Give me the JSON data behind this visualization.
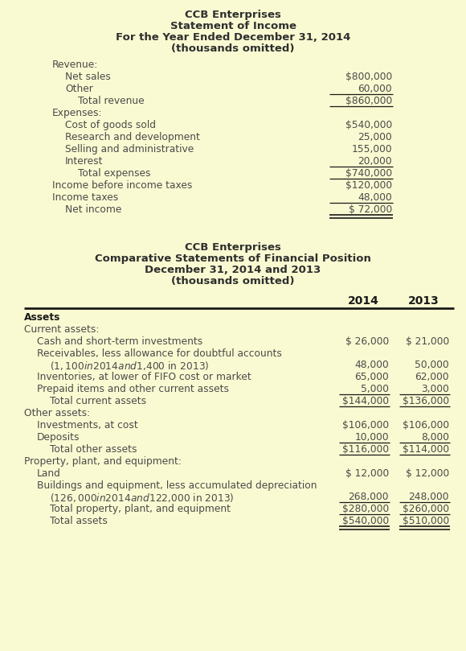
{
  "bg_color": "#FAFAD2",
  "title_color": "#2F2F2F",
  "text_color": "#4a4a4a",
  "bold_color": "#1a1a1a",
  "figsize": [
    5.8,
    8.09
  ],
  "dpi": 100,
  "income_title1": "CCB Enterprises",
  "income_title2": "Statement of Income",
  "income_title3": "For the Year Ended December 31, 2014",
  "income_title4": "(thousands omitted)",
  "income_rows": [
    {
      "label": "Revenue:",
      "indent": 0,
      "value": "",
      "underline": false,
      "double_underline": false
    },
    {
      "label": "Net sales",
      "indent": 1,
      "value": "$800,000",
      "underline": false,
      "double_underline": false
    },
    {
      "label": "Other",
      "indent": 1,
      "value": "60,000",
      "underline": true,
      "double_underline": false
    },
    {
      "label": "Total revenue",
      "indent": 2,
      "value": "$860,000",
      "underline": true,
      "double_underline": false
    },
    {
      "label": "Expenses:",
      "indent": 0,
      "value": "",
      "underline": false,
      "double_underline": false
    },
    {
      "label": "Cost of goods sold",
      "indent": 1,
      "value": "$540,000",
      "underline": false,
      "double_underline": false
    },
    {
      "label": "Research and development",
      "indent": 1,
      "value": "25,000",
      "underline": false,
      "double_underline": false
    },
    {
      "label": "Selling and administrative",
      "indent": 1,
      "value": "155,000",
      "underline": false,
      "double_underline": false
    },
    {
      "label": "Interest",
      "indent": 1,
      "value": "20,000",
      "underline": true,
      "double_underline": false
    },
    {
      "label": "Total expenses",
      "indent": 2,
      "value": "$740,000",
      "underline": true,
      "double_underline": false
    },
    {
      "label": "Income before income taxes",
      "indent": 0,
      "value": "$120,000",
      "underline": false,
      "double_underline": false
    },
    {
      "label": "Income taxes",
      "indent": 0,
      "value": "48,000",
      "underline": true,
      "double_underline": false
    },
    {
      "label": "Net income",
      "indent": 1,
      "value": "$ 72,000",
      "underline": false,
      "double_underline": true
    }
  ],
  "bs_title1": "CCB Enterprises",
  "bs_title2": "Comparative Statements of Financial Position",
  "bs_title3": "December 31, 2014 and 2013",
  "bs_title4": "(thousands omitted)",
  "bs_rows": [
    {
      "label": "Assets",
      "label2": null,
      "indent": 0,
      "val2014": "",
      "val2013": "",
      "bold_label": true,
      "underline2014": false,
      "underline2013": false,
      "double2014": false,
      "double2013": false
    },
    {
      "label": "Current assets:",
      "label2": null,
      "indent": 0,
      "val2014": "",
      "val2013": "",
      "bold_label": false,
      "underline2014": false,
      "underline2013": false,
      "double2014": false,
      "double2013": false
    },
    {
      "label": "Cash and short-term investments",
      "label2": null,
      "indent": 1,
      "val2014": "$ 26,000",
      "val2013": "$ 21,000",
      "bold_label": false,
      "underline2014": false,
      "underline2013": false,
      "double2014": false,
      "double2013": false
    },
    {
      "label": "Receivables, less allowance for doubtful accounts",
      "label2": "($1,100 in 2014 and $1,400 in 2013)",
      "indent": 1,
      "val2014": "48,000",
      "val2013": "50,000",
      "bold_label": false,
      "underline2014": false,
      "underline2013": false,
      "double2014": false,
      "double2013": false
    },
    {
      "label": "Inventories, at lower of FIFO cost or market",
      "label2": null,
      "indent": 1,
      "val2014": "65,000",
      "val2013": "62,000",
      "bold_label": false,
      "underline2014": false,
      "underline2013": false,
      "double2014": false,
      "double2013": false
    },
    {
      "label": "Prepaid items and other current assets",
      "label2": null,
      "indent": 1,
      "val2014": "5,000",
      "val2013": "3,000",
      "bold_label": false,
      "underline2014": true,
      "underline2013": true,
      "double2014": false,
      "double2013": false
    },
    {
      "label": "Total current assets",
      "label2": null,
      "indent": 2,
      "val2014": "$144,000",
      "val2013": "$136,000",
      "bold_label": false,
      "underline2014": true,
      "underline2013": true,
      "double2014": false,
      "double2013": false
    },
    {
      "label": "Other assets:",
      "label2": null,
      "indent": 0,
      "val2014": "",
      "val2013": "",
      "bold_label": false,
      "underline2014": false,
      "underline2013": false,
      "double2014": false,
      "double2013": false
    },
    {
      "label": "Investments, at cost",
      "label2": null,
      "indent": 1,
      "val2014": "$106,000",
      "val2013": "$106,000",
      "bold_label": false,
      "underline2014": false,
      "underline2013": false,
      "double2014": false,
      "double2013": false
    },
    {
      "label": "Deposits",
      "label2": null,
      "indent": 1,
      "val2014": "10,000",
      "val2013": "8,000",
      "bold_label": false,
      "underline2014": true,
      "underline2013": true,
      "double2014": false,
      "double2013": false
    },
    {
      "label": "Total other assets",
      "label2": null,
      "indent": 2,
      "val2014": "$116,000",
      "val2013": "$114,000",
      "bold_label": false,
      "underline2014": true,
      "underline2013": true,
      "double2014": false,
      "double2013": false
    },
    {
      "label": "Property, plant, and equipment:",
      "label2": null,
      "indent": 0,
      "val2014": "",
      "val2013": "",
      "bold_label": false,
      "underline2014": false,
      "underline2013": false,
      "double2014": false,
      "double2013": false
    },
    {
      "label": "Land",
      "label2": null,
      "indent": 1,
      "val2014": "$ 12,000",
      "val2013": "$ 12,000",
      "bold_label": false,
      "underline2014": false,
      "underline2013": false,
      "double2014": false,
      "double2013": false
    },
    {
      "label": "Buildings and equipment, less accumulated depreciation",
      "label2": "($126,000 in 2014 and $122,000 in 2013)",
      "indent": 1,
      "val2014": "268,000",
      "val2013": "248,000",
      "bold_label": false,
      "underline2014": true,
      "underline2013": true,
      "double2014": false,
      "double2013": false
    },
    {
      "label": "Total property, plant, and equipment",
      "label2": null,
      "indent": 2,
      "val2014": "$280,000",
      "val2013": "$260,000",
      "bold_label": false,
      "underline2014": true,
      "underline2013": true,
      "double2014": false,
      "double2013": false
    },
    {
      "label": "Total assets",
      "label2": null,
      "indent": 2,
      "val2014": "$540,000",
      "val2013": "$510,000",
      "bold_label": false,
      "underline2014": false,
      "underline2013": false,
      "double2014": true,
      "double2013": true
    }
  ]
}
